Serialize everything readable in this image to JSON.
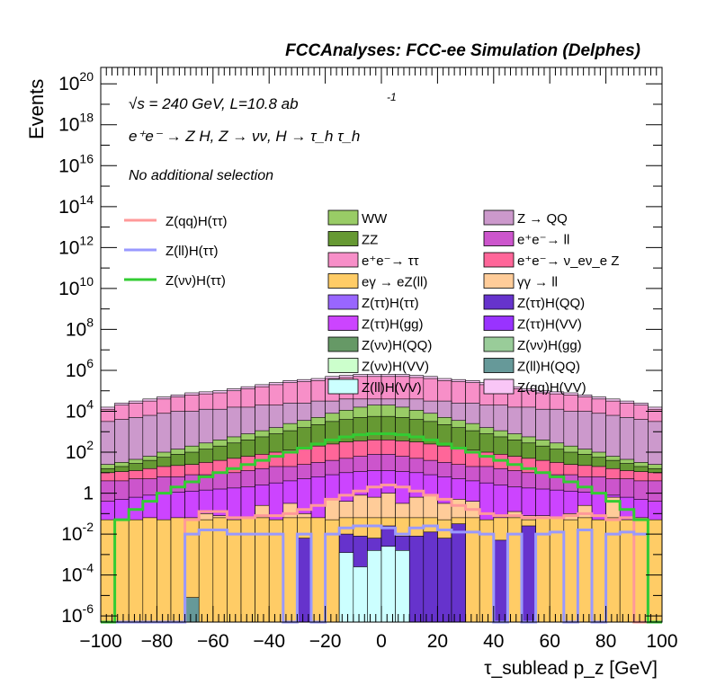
{
  "header": {
    "experiment": "FCCAnalyses: FCC-ee Simulation (Delphes)",
    "energy": "√s = 240 GeV, L=10.8 ab",
    "energy_sup": "-1",
    "process": "e⁺e⁻ → Z H, Z → νν, H → τ_h τ_h",
    "selection": "No additional selection"
  },
  "chart_data": {
    "type": "area",
    "title": "",
    "xlabel": "τ_sublead p_z [GeV]",
    "ylabel": "Events",
    "xlim": [
      -100,
      100
    ],
    "ylim_exp": [
      -6.3,
      20.8
    ],
    "log_y": true,
    "bin_width": 5,
    "xticks": [
      "−100",
      "−80",
      "−60",
      "−40",
      "−20",
      "0",
      "20",
      "40",
      "60",
      "80",
      "100"
    ],
    "yticks": [
      "10^-6",
      "10^-4",
      "10^-2",
      "1",
      "10^2",
      "10^4",
      "10^6",
      "10^8",
      "10^10",
      "10^12",
      "10^14",
      "10^16",
      "10^18",
      "10^20"
    ],
    "stack_log10_totals": [
      {
        "name": "Z(qq)H(VV)",
        "color": "#f9c6f6",
        "bins_log10": [
          4.2,
          4.4,
          4.5,
          4.6,
          4.7,
          4.8,
          4.9,
          4.95,
          5.0,
          5.1,
          5.2,
          5.3,
          5.4,
          5.5,
          5.55,
          5.6,
          5.7,
          5.75,
          5.8,
          5.8,
          5.8,
          5.8,
          5.75,
          5.7,
          5.6,
          5.55,
          5.5,
          5.4,
          5.3,
          5.2,
          5.1,
          5.0,
          4.95,
          4.9,
          4.8,
          4.7,
          4.6,
          4.5,
          4.4,
          4.2
        ]
      },
      {
        "name": "e⁺e⁻→ ττ",
        "color": "#f78fc8",
        "bins_log10": [
          4.1,
          4.3,
          4.4,
          4.5,
          4.6,
          4.7,
          4.8,
          4.85,
          4.9,
          5.0,
          5.1,
          5.2,
          5.3,
          5.4,
          5.45,
          5.5,
          5.6,
          5.65,
          5.7,
          5.7,
          5.7,
          5.7,
          5.65,
          5.6,
          5.5,
          5.45,
          5.4,
          5.3,
          5.2,
          5.1,
          5.0,
          4.9,
          4.85,
          4.8,
          4.7,
          4.6,
          4.5,
          4.4,
          4.3,
          4.1
        ]
      },
      {
        "name": "Z → QQ",
        "color": "#cc99cc",
        "bins_log10": [
          3.5,
          3.6,
          3.7,
          3.8,
          3.9,
          4.0,
          4.0,
          4.1,
          4.1,
          4.2,
          4.2,
          4.3,
          4.3,
          4.4,
          4.4,
          4.5,
          4.5,
          4.6,
          4.6,
          4.6,
          4.6,
          4.6,
          4.6,
          4.5,
          4.5,
          4.4,
          4.4,
          4.3,
          4.3,
          4.2,
          4.2,
          4.1,
          4.1,
          4.0,
          4.0,
          3.9,
          3.8,
          3.7,
          3.6,
          3.5
        ]
      },
      {
        "name": "WW",
        "color": "#99cc66",
        "bins_log10": [
          1.4,
          1.5,
          1.65,
          1.8,
          2.0,
          2.15,
          2.3,
          2.45,
          2.6,
          2.75,
          2.9,
          3.05,
          3.2,
          3.4,
          3.55,
          3.7,
          3.9,
          4.05,
          4.2,
          4.3,
          4.3,
          4.2,
          4.05,
          3.9,
          3.7,
          3.55,
          3.4,
          3.2,
          3.05,
          2.9,
          2.75,
          2.6,
          2.45,
          2.3,
          2.15,
          2.0,
          1.8,
          1.65,
          1.5,
          1.4
        ]
      },
      {
        "name": "ZZ",
        "color": "#669933",
        "bins_log10": [
          1.2,
          1.3,
          1.45,
          1.6,
          1.75,
          1.9,
          2.0,
          2.15,
          2.3,
          2.45,
          2.6,
          2.75,
          2.9,
          3.05,
          3.2,
          3.35,
          3.5,
          3.6,
          3.7,
          3.75,
          3.75,
          3.7,
          3.6,
          3.5,
          3.35,
          3.2,
          3.05,
          2.9,
          2.75,
          2.6,
          2.45,
          2.3,
          2.15,
          2.0,
          1.9,
          1.75,
          1.6,
          1.45,
          1.3,
          1.2
        ]
      },
      {
        "name": "e⁺e⁻→ ν_eν_e Z",
        "color": "#ff6699",
        "bins_log10": [
          1.0,
          1.05,
          1.1,
          1.2,
          1.3,
          1.35,
          1.4,
          1.5,
          1.6,
          1.7,
          1.8,
          1.9,
          2.0,
          2.1,
          2.2,
          2.3,
          2.4,
          2.5,
          2.55,
          2.6,
          2.6,
          2.55,
          2.5,
          2.4,
          2.3,
          2.2,
          2.1,
          2.0,
          1.9,
          1.8,
          1.7,
          1.6,
          1.5,
          1.4,
          1.35,
          1.3,
          1.2,
          1.1,
          1.05,
          1.0
        ]
      },
      {
        "name": "e⁺e⁻→ ll",
        "color": "#cc55cc",
        "bins_log10": [
          0.6,
          0.6,
          0.7,
          0.7,
          0.8,
          0.8,
          0.9,
          0.9,
          1.0,
          1.0,
          1.1,
          1.2,
          1.3,
          1.3,
          1.4,
          1.5,
          1.6,
          1.7,
          1.8,
          1.9,
          1.9,
          1.8,
          1.7,
          1.6,
          1.5,
          1.4,
          1.3,
          1.3,
          1.2,
          1.1,
          1.0,
          1.0,
          0.9,
          0.9,
          0.8,
          0.8,
          0.7,
          0.7,
          0.6,
          0.6
        ]
      },
      {
        "name": "Z(ττ)H(gg)",
        "color": "#cc44ff",
        "bins_log10": [
          -0.4,
          -0.3,
          -0.2,
          -0.1,
          0.0,
          0.05,
          0.1,
          0.15,
          0.2,
          0.25,
          0.3,
          0.4,
          0.5,
          0.6,
          0.7,
          0.8,
          0.9,
          1.0,
          1.05,
          1.1,
          1.1,
          1.05,
          1.0,
          0.9,
          0.8,
          0.7,
          0.6,
          0.5,
          0.4,
          0.3,
          0.25,
          0.2,
          0.15,
          0.1,
          0.05,
          0.0,
          -0.1,
          -0.2,
          -0.3,
          -0.4
        ]
      },
      {
        "name": "γγ → ll",
        "color": "#ffcc99",
        "bins_log10": [
          -6.4,
          -6.4,
          -6.4,
          -2.3,
          -3.3,
          -1.7,
          -4.2,
          -1.0,
          -1.1,
          -2.3,
          -1.2,
          -0.6,
          -1.8,
          -0.5,
          -1.0,
          -1.9,
          -0.3,
          -0.4,
          -0.1,
          -0.2,
          0.0,
          -0.5,
          -0.2,
          -0.1,
          -0.5,
          -0.3,
          -0.4,
          -2.1,
          -1.6,
          -0.9,
          -1.1,
          -1.1,
          -1.9,
          -1.0,
          -0.6,
          -1.5,
          -0.2,
          -1.4,
          -6.4,
          -6.4
        ]
      },
      {
        "name": "eγ → eZ(ll)",
        "color": "#ffcc66",
        "bins_log10": [
          -1.3,
          -1.3,
          -1.3,
          -1.2,
          -1.3,
          -1.2,
          -1.2,
          -1.3,
          -1.2,
          -1.3,
          -1.2,
          -1.2,
          -1.3,
          -1.2,
          -1.2,
          -1.2,
          -1.3,
          -1.2,
          -1.2,
          -1.2,
          -1.2,
          -1.2,
          -1.2,
          -1.2,
          -1.3,
          -1.2,
          -1.2,
          -1.3,
          -1.2,
          -1.2,
          -1.3,
          -1.2,
          -1.2,
          -1.3,
          -1.2,
          -1.3,
          -1.2,
          -1.3,
          -1.2,
          -1.3
        ]
      },
      {
        "name": "Z(ττ)H(VV)",
        "color": "#9933ff",
        "bins_log10": [
          -6.4,
          -6.4,
          -6.4,
          -6.4,
          -6.4,
          -6.4,
          -6.4,
          -6.4,
          -6.4,
          -6.4,
          -6.4,
          -6.4,
          -6.4,
          -6.4,
          -3.0,
          -6.4,
          -6.4,
          -6.4,
          -6.4,
          -6.4,
          -6.4,
          -6.4,
          -6.4,
          -6.4,
          -6.4,
          -6.4,
          -6.4,
          -6.4,
          -6.4,
          -6.4,
          -6.4,
          -6.4,
          -6.4,
          -6.4,
          -6.4,
          -6.4,
          -6.4,
          -6.4,
          -6.4,
          -6.4
        ]
      },
      {
        "name": "Z(ττ)H(QQ)",
        "color": "#6633cc",
        "bins_log10": [
          -6.4,
          -6.4,
          -6.4,
          -6.4,
          -6.4,
          -6.4,
          -6.4,
          -6.4,
          -6.4,
          -6.4,
          -6.4,
          -6.4,
          -6.4,
          -6.4,
          -2.2,
          -6.4,
          -6.4,
          -2.0,
          -2.1,
          -2.2,
          -1.6,
          -2.1,
          -2.1,
          -1.9,
          -2.2,
          -1.5,
          -6.4,
          -6.4,
          -2.3,
          -6.4,
          -1.6,
          -6.4,
          -6.4,
          -6.4,
          -6.4,
          -6.4,
          -6.4,
          -6.4,
          -6.4,
          -6.4
        ]
      },
      {
        "name": "Z(ll)H(VV)",
        "color": "#ccffff",
        "bins_log10": [
          -6.4,
          -6.4,
          -6.4,
          -6.4,
          -6.4,
          -6.4,
          -6.4,
          -6.4,
          -6.4,
          -6.4,
          -6.4,
          -6.4,
          -6.4,
          -6.4,
          -6.4,
          -6.4,
          -6.4,
          -2.9,
          -3.6,
          -2.8,
          -2.6,
          -2.8,
          -6.4,
          -6.4,
          -6.4,
          -6.4,
          -6.4,
          -6.4,
          -6.4,
          -6.4,
          -6.4,
          -6.4,
          -6.4,
          -6.4,
          -6.4,
          -6.4,
          -6.4,
          -6.4,
          -6.4,
          -6.4
        ]
      },
      {
        "name": "Z(ll)H(QQ)",
        "color": "#669999",
        "bins_log10": [
          -6.4,
          -6.4,
          -6.4,
          -6.4,
          -6.4,
          -6.4,
          -5.1,
          -6.4,
          -6.4,
          -6.4,
          -6.4,
          -6.4,
          -6.4,
          -6.4,
          -6.4,
          -6.4,
          -6.4,
          -6.4,
          -6.4,
          -6.4,
          -6.4,
          -6.4,
          -6.4,
          -6.4,
          -6.4,
          -6.4,
          -6.4,
          -6.4,
          -6.4,
          -6.4,
          -6.4,
          -6.4,
          -6.4,
          -6.4,
          -6.4,
          -6.4,
          -6.4,
          -6.4,
          -6.4,
          -6.4
        ]
      }
    ],
    "signal_lines": [
      {
        "name": "Z(qq)H(ττ)",
        "color": "#ff9999",
        "bins_log10": [
          -6.4,
          -6.4,
          -6.4,
          -6.4,
          -6.4,
          -6.4,
          -1.3,
          -0.9,
          -0.9,
          -1.2,
          -1.2,
          -1.1,
          -1.1,
          -1.0,
          -0.8,
          -0.6,
          -0.3,
          -0.1,
          0.1,
          0.3,
          0.4,
          0.3,
          0.1,
          -0.1,
          -0.3,
          -0.6,
          -0.8,
          -1.0,
          -1.1,
          -1.1,
          -1.2,
          -1.2,
          -1.2,
          -1.1,
          -1.0,
          -1.1,
          -1.3,
          -1.2,
          -6.4,
          -6.4
        ]
      },
      {
        "name": "Z(ll)H(ττ)",
        "color": "#9999ff",
        "bins_log10": [
          -6.4,
          -6.4,
          -6.4,
          -6.4,
          -6.4,
          -6.4,
          -2.0,
          -1.8,
          -1.8,
          -2.0,
          -2.0,
          -2.0,
          -2.0,
          -6.4,
          -2.0,
          -6.4,
          -2.0,
          -1.7,
          -1.6,
          -1.6,
          -1.7,
          -2.0,
          -1.7,
          -1.6,
          -1.8,
          -1.9,
          -1.9,
          -2.0,
          -6.4,
          -2.0,
          -6.4,
          -2.0,
          -1.9,
          -6.4,
          -1.8,
          -6.4,
          -2.0,
          -1.9,
          -2.0,
          -6.4
        ]
      },
      {
        "name": "Z(νν)H(ττ)",
        "color": "#33cc33",
        "bins_log10": [
          -6.4,
          -1.3,
          -0.8,
          -0.4,
          0.0,
          0.3,
          0.55,
          0.8,
          1.0,
          1.2,
          1.4,
          1.6,
          1.8,
          2.0,
          2.2,
          2.4,
          2.6,
          2.75,
          2.85,
          2.9,
          2.9,
          2.85,
          2.75,
          2.6,
          2.4,
          2.2,
          2.0,
          1.8,
          1.6,
          1.4,
          1.2,
          1.0,
          0.8,
          0.55,
          0.3,
          0.0,
          -0.4,
          -0.8,
          -1.3,
          -6.4
        ]
      }
    ],
    "legend_left": [
      "Z(qq)H(ττ)",
      "Z(ll)H(ττ)",
      "Z(νν)H(ττ)"
    ],
    "legend_main": [
      {
        "name": "WW",
        "color": "#99cc66"
      },
      {
        "name": "Z → QQ",
        "color": "#cc99cc"
      },
      {
        "name": "ZZ",
        "color": "#669933"
      },
      {
        "name": "e⁺e⁻→ ll",
        "color": "#cc55cc"
      },
      {
        "name": "e⁺e⁻→ ττ",
        "color": "#f78fc8"
      },
      {
        "name": "e⁺e⁻→ ν_eν_e Z",
        "color": "#ff6699"
      },
      {
        "name": "eγ → eZ(ll)",
        "color": "#ffcc66"
      },
      {
        "name": "γγ → ll",
        "color": "#ffcc99"
      },
      {
        "name": "Z(ττ)H(ττ)",
        "color": "#9966ff"
      },
      {
        "name": "Z(ττ)H(QQ)",
        "color": "#6633cc"
      },
      {
        "name": "Z(ττ)H(gg)",
        "color": "#cc44ff"
      },
      {
        "name": "Z(ττ)H(VV)",
        "color": "#9933ff"
      },
      {
        "name": "Z(νν)H(QQ)",
        "color": "#669966"
      },
      {
        "name": "Z(νν)H(gg)",
        "color": "#99cc99"
      },
      {
        "name": "Z(νν)H(VV)",
        "color": "#ccffcc"
      },
      {
        "name": "Z(ll)H(QQ)",
        "color": "#669999"
      },
      {
        "name": "Z(ll)H(VV)",
        "color": "#ccffff"
      },
      {
        "name": "Z(qq)H(VV)",
        "color": "#f9c6f6"
      }
    ],
    "grid": false,
    "legend_placement": "inside-top"
  }
}
